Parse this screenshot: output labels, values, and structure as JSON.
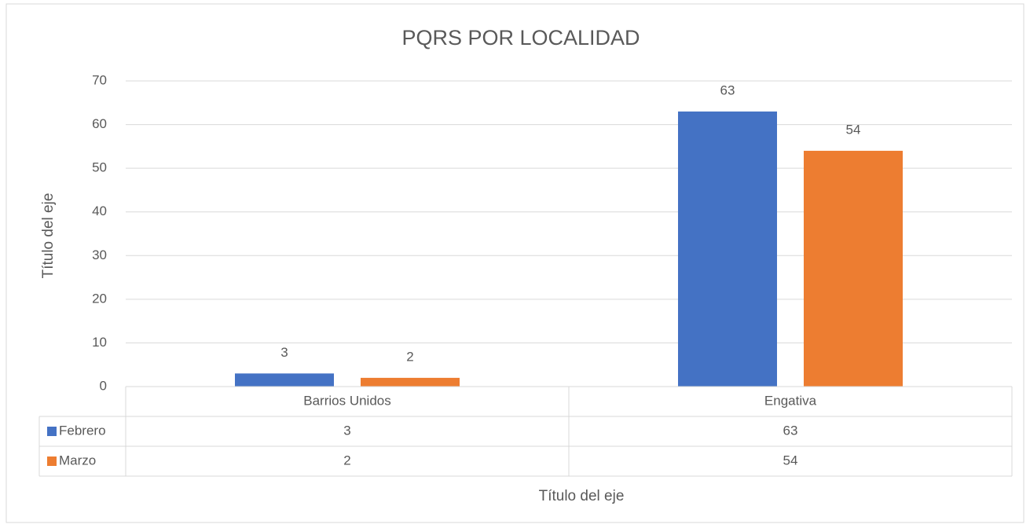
{
  "chart_data": {
    "type": "bar",
    "title": "PQRS POR LOCALIDAD",
    "x_label": "Título del eje",
    "y_label": "Título del eje",
    "categories": [
      "Barrios Unidos",
      "Engativa"
    ],
    "series": [
      {
        "name": "Febrero",
        "color": "#4472c4",
        "values": [
          3,
          63
        ]
      },
      {
        "name": "Marzo",
        "color": "#ed7d31",
        "values": [
          2,
          54
        ]
      }
    ],
    "ylim": [
      0,
      70
    ],
    "yticks": [
      0,
      10,
      20,
      30,
      40,
      50,
      60,
      70
    ],
    "grid": true,
    "data_table": true
  }
}
